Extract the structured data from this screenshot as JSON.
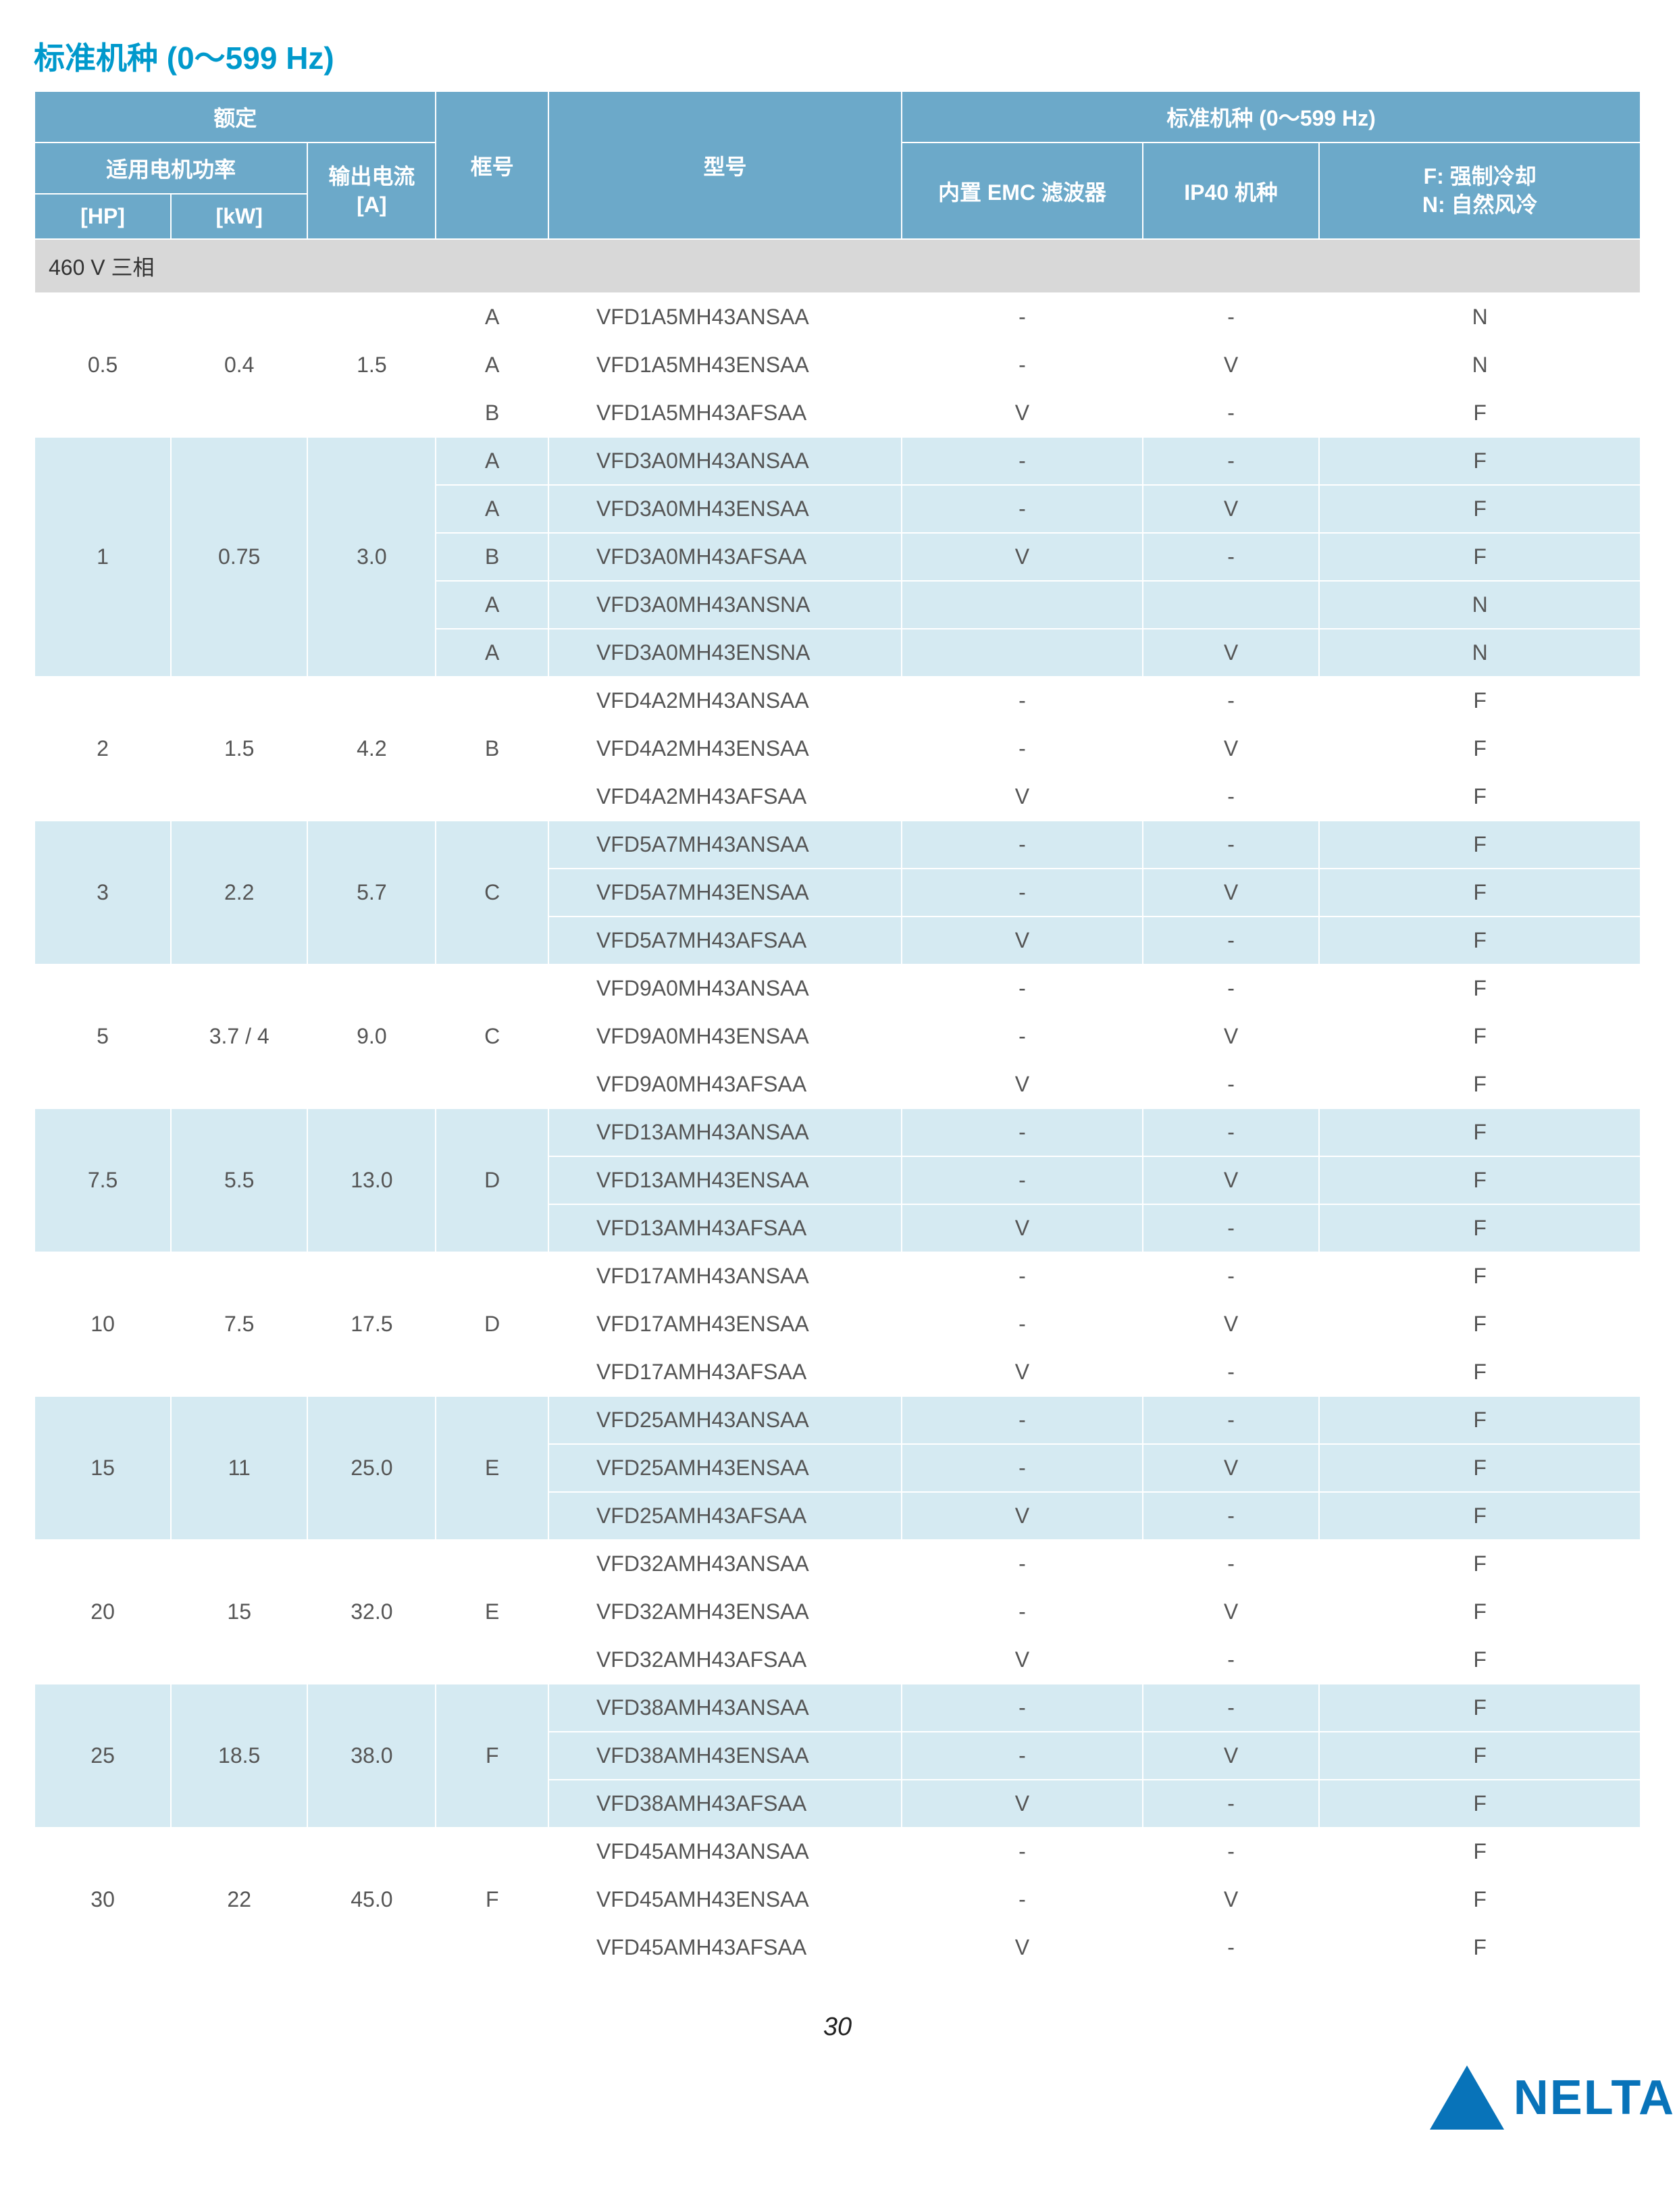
{
  "title": "标准机种 (0～599 Hz)",
  "page_number": "30",
  "logo_text": "NELTA",
  "colors": {
    "title": "#0099cc",
    "header_bg": "#6ca9c9",
    "header_fg": "#ffffff",
    "band_white": "#ffffff",
    "band_blue": "#d5eaf2",
    "section_bg": "#d8d8d8",
    "logo": "#0873b9"
  },
  "headers": {
    "rating": "额定",
    "motor_power": "适用电机功率",
    "hp": "[HP]",
    "kw": "[kW]",
    "out_current": "输出电流",
    "out_current_unit": "[A]",
    "frame": "框号",
    "model": "型号",
    "std_group": "标准机种 (0～599 Hz)",
    "emc": "内置 EMC 滤波器",
    "ip40": "IP40 机种",
    "cooling_line1": "F: 强制冷却",
    "cooling_line2": "N: 自然风冷"
  },
  "section_label": "460 V 三相",
  "groups": [
    {
      "hp": "0.5",
      "kw": "0.4",
      "amp": "1.5",
      "band": "white",
      "rows": [
        {
          "frame": "A",
          "model": "VFD1A5MH43ANSAA",
          "emc": "-",
          "ip40": "-",
          "cool": "N"
        },
        {
          "frame": "A",
          "model": "VFD1A5MH43ENSAA",
          "emc": "-",
          "ip40": "V",
          "cool": "N"
        },
        {
          "frame": "B",
          "model": "VFD1A5MH43AFSAA",
          "emc": "V",
          "ip40": "-",
          "cool": "F"
        }
      ]
    },
    {
      "hp": "1",
      "kw": "0.75",
      "amp": "3.0",
      "band": "blue",
      "rows": [
        {
          "frame": "A",
          "model": "VFD3A0MH43ANSAA",
          "emc": "-",
          "ip40": "-",
          "cool": "F"
        },
        {
          "frame": "A",
          "model": "VFD3A0MH43ENSAA",
          "emc": "-",
          "ip40": "V",
          "cool": "F"
        },
        {
          "frame": "B",
          "model": "VFD3A0MH43AFSAA",
          "emc": "V",
          "ip40": "-",
          "cool": "F"
        },
        {
          "frame": "A",
          "model": "VFD3A0MH43ANSNA",
          "emc": "",
          "ip40": "",
          "cool": "N"
        },
        {
          "frame": "A",
          "model": "VFD3A0MH43ENSNA",
          "emc": "",
          "ip40": "V",
          "cool": "N"
        }
      ]
    },
    {
      "hp": "2",
      "kw": "1.5",
      "amp": "4.2",
      "band": "white",
      "frame_span": "B",
      "rows": [
        {
          "model": "VFD4A2MH43ANSAA",
          "emc": "-",
          "ip40": "-",
          "cool": "F"
        },
        {
          "model": "VFD4A2MH43ENSAA",
          "emc": "-",
          "ip40": "V",
          "cool": "F"
        },
        {
          "model": "VFD4A2MH43AFSAA",
          "emc": "V",
          "ip40": "-",
          "cool": "F"
        }
      ]
    },
    {
      "hp": "3",
      "kw": "2.2",
      "amp": "5.7",
      "band": "blue",
      "frame_span": "C",
      "rows": [
        {
          "model": "VFD5A7MH43ANSAA",
          "emc": "-",
          "ip40": "-",
          "cool": "F"
        },
        {
          "model": "VFD5A7MH43ENSAA",
          "emc": "-",
          "ip40": "V",
          "cool": "F"
        },
        {
          "model": "VFD5A7MH43AFSAA",
          "emc": "V",
          "ip40": "-",
          "cool": "F"
        }
      ]
    },
    {
      "hp": "5",
      "kw": "3.7 / 4",
      "amp": "9.0",
      "band": "white",
      "frame_span": "C",
      "rows": [
        {
          "model": "VFD9A0MH43ANSAA",
          "emc": "-",
          "ip40": "-",
          "cool": "F"
        },
        {
          "model": "VFD9A0MH43ENSAA",
          "emc": "-",
          "ip40": "V",
          "cool": "F"
        },
        {
          "model": "VFD9A0MH43AFSAA",
          "emc": "V",
          "ip40": "-",
          "cool": "F"
        }
      ]
    },
    {
      "hp": "7.5",
      "kw": "5.5",
      "amp": "13.0",
      "band": "blue",
      "frame_span": "D",
      "rows": [
        {
          "model": "VFD13AMH43ANSAA",
          "emc": "-",
          "ip40": "-",
          "cool": "F"
        },
        {
          "model": "VFD13AMH43ENSAA",
          "emc": "-",
          "ip40": "V",
          "cool": "F"
        },
        {
          "model": "VFD13AMH43AFSAA",
          "emc": "V",
          "ip40": "-",
          "cool": "F"
        }
      ]
    },
    {
      "hp": "10",
      "kw": "7.5",
      "amp": "17.5",
      "band": "white",
      "frame_span": "D",
      "rows": [
        {
          "model": "VFD17AMH43ANSAA",
          "emc": "-",
          "ip40": "-",
          "cool": "F"
        },
        {
          "model": "VFD17AMH43ENSAA",
          "emc": "-",
          "ip40": "V",
          "cool": "F"
        },
        {
          "model": "VFD17AMH43AFSAA",
          "emc": "V",
          "ip40": "-",
          "cool": "F"
        }
      ]
    },
    {
      "hp": "15",
      "kw": "11",
      "amp": "25.0",
      "band": "blue",
      "frame_span": "E",
      "rows": [
        {
          "model": "VFD25AMH43ANSAA",
          "emc": "-",
          "ip40": "-",
          "cool": "F"
        },
        {
          "model": "VFD25AMH43ENSAA",
          "emc": "-",
          "ip40": "V",
          "cool": "F"
        },
        {
          "model": "VFD25AMH43AFSAA",
          "emc": "V",
          "ip40": "-",
          "cool": "F"
        }
      ]
    },
    {
      "hp": "20",
      "kw": "15",
      "amp": "32.0",
      "band": "white",
      "frame_span": "E",
      "rows": [
        {
          "model": "VFD32AMH43ANSAA",
          "emc": "-",
          "ip40": "-",
          "cool": "F"
        },
        {
          "model": "VFD32AMH43ENSAA",
          "emc": "-",
          "ip40": "V",
          "cool": "F"
        },
        {
          "model": "VFD32AMH43AFSAA",
          "emc": "V",
          "ip40": "-",
          "cool": "F"
        }
      ]
    },
    {
      "hp": "25",
      "kw": "18.5",
      "amp": "38.0",
      "band": "blue",
      "frame_span": "F",
      "rows": [
        {
          "model": "VFD38AMH43ANSAA",
          "emc": "-",
          "ip40": "-",
          "cool": "F"
        },
        {
          "model": "VFD38AMH43ENSAA",
          "emc": "-",
          "ip40": "V",
          "cool": "F"
        },
        {
          "model": "VFD38AMH43AFSAA",
          "emc": "V",
          "ip40": "-",
          "cool": "F"
        }
      ]
    },
    {
      "hp": "30",
      "kw": "22",
      "amp": "45.0",
      "band": "white",
      "frame_span": "F",
      "rows": [
        {
          "model": "VFD45AMH43ANSAA",
          "emc": "-",
          "ip40": "-",
          "cool": "F"
        },
        {
          "model": "VFD45AMH43ENSAA",
          "emc": "-",
          "ip40": "V",
          "cool": "F"
        },
        {
          "model": "VFD45AMH43AFSAA",
          "emc": "V",
          "ip40": "-",
          "cool": "F"
        }
      ]
    }
  ]
}
